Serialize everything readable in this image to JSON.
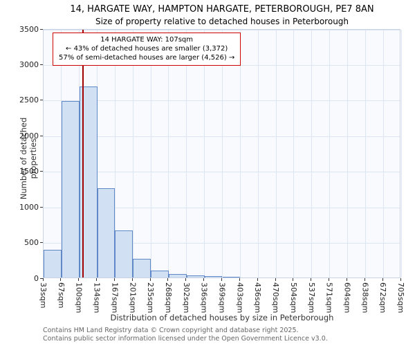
{
  "title": {
    "line1": "14, HARGATE WAY, HAMPTON HARGATE, PETERBOROUGH, PE7 8AN",
    "line2": "Size of property relative to detached houses in Peterborough"
  },
  "annotation": {
    "line1": "14 HARGATE WAY: 107sqm",
    "line2": "← 43% of detached houses are smaller (3,372)",
    "line3": "57% of semi-detached houses are larger (4,526) →"
  },
  "chart_data": {
    "type": "bar",
    "title": "Size of property relative to detached houses in Peterborough",
    "xlabel": "Distribution of detached houses by size in Peterborough",
    "ylabel": "Number of detached properties",
    "bin_labels": [
      "33sqm",
      "67sqm",
      "100sqm",
      "134sqm",
      "167sqm",
      "201sqm",
      "235sqm",
      "268sqm",
      "302sqm",
      "336sqm",
      "369sqm",
      "403sqm",
      "436sqm",
      "470sqm",
      "504sqm",
      "537sqm",
      "571sqm",
      "604sqm",
      "638sqm",
      "672sqm",
      "705sqm"
    ],
    "values": [
      390,
      2480,
      2680,
      1250,
      660,
      260,
      100,
      50,
      30,
      15,
      10,
      0,
      0,
      0,
      0,
      0,
      0,
      0,
      0,
      0
    ],
    "ylim": [
      0,
      3500
    ],
    "ytick_step": 500,
    "grid": true,
    "legend": "none",
    "bar_fill": "#d2e0f4",
    "bar_border": "#6188c6",
    "marker": {
      "value_sqm": 107,
      "color": "#a00000"
    }
  },
  "footer": {
    "line1": "Contains HM Land Registry data © Crown copyright and database right 2025.",
    "line2": "Contains public sector information licensed under the Open Government Licence v3.0."
  }
}
